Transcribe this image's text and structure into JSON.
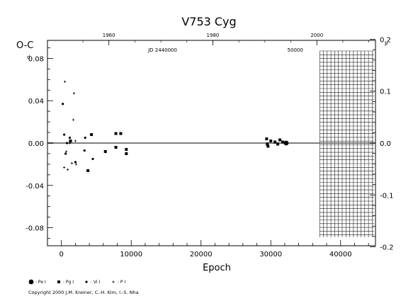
{
  "chart_data": {
    "type": "scatter",
    "title": "V753 Cyg",
    "xlabel": "Epoch",
    "ylabel_left": "O-C",
    "ylabel_left_unit": "d",
    "ylabel_right_unit": "P",
    "xlim": [
      -2000,
      45000
    ],
    "ylim": [
      -0.097,
      0.097
    ],
    "x_ticks": [
      0,
      10000,
      20000,
      30000,
      40000
    ],
    "x_tick_labels": [
      "0",
      "10000",
      "20000",
      "30000",
      "40000"
    ],
    "y_ticks": [
      -0.08,
      -0.04,
      0.0,
      0.04,
      0.08
    ],
    "y_tick_labels": [
      "-0.08",
      "-0.04",
      "0.00",
      "0.04",
      "0.08"
    ],
    "top_axis_ticks": [
      {
        "epoch": 6800,
        "label": "1960"
      },
      {
        "epoch": 21700,
        "label": "1980"
      },
      {
        "epoch": 36600,
        "label": "2000"
      }
    ],
    "top_axis_annotations": [
      {
        "epoch": 14500,
        "label": "JD 2440000"
      },
      {
        "epoch": 33500,
        "label": "50000"
      }
    ],
    "right_axis_ticks": [
      0.2,
      0.1,
      0.0,
      -0.1,
      -0.2
    ],
    "right_axis_tick_labels": [
      "0.2",
      "0.1",
      "0.0",
      "-0.1",
      "-0.2"
    ],
    "right_per_left": 1.36,
    "future_hatch_from": 37000,
    "series": [
      {
        "name": ": Pe I",
        "marker": "big-dot",
        "points": [
          [
            32200,
            0.0
          ]
        ]
      },
      {
        "name": ": Pg I",
        "marker": "square",
        "points": [
          [
            1300,
            0.002
          ],
          [
            3800,
            -0.026
          ],
          [
            4300,
            0.008
          ],
          [
            6300,
            -0.008
          ],
          [
            7800,
            0.009
          ],
          [
            7800,
            -0.004
          ],
          [
            8500,
            0.009
          ],
          [
            9300,
            -0.006
          ],
          [
            9300,
            -0.01
          ],
          [
            29400,
            0.004
          ],
          [
            29500,
            -0.001
          ],
          [
            29600,
            -0.003
          ],
          [
            30000,
            0.002
          ],
          [
            30600,
            0.001
          ],
          [
            31000,
            -0.001
          ],
          [
            31300,
            0.003
          ],
          [
            31700,
            0.001
          ]
        ]
      },
      {
        "name": ": Vi I",
        "marker": "dot",
        "points": [
          [
            200,
            0.037
          ],
          [
            400,
            0.008
          ],
          [
            600,
            -0.01
          ],
          [
            800,
            0.0
          ],
          [
            1200,
            0.005
          ],
          [
            2000,
            -0.018
          ],
          [
            3300,
            -0.007
          ],
          [
            3400,
            0.005
          ],
          [
            4500,
            -0.015
          ]
        ]
      },
      {
        "name": ": P I",
        "marker": "plus",
        "points": [
          [
            400,
            -0.023
          ],
          [
            500,
            0.058
          ],
          [
            700,
            -0.008
          ],
          [
            900,
            -0.025
          ],
          [
            1200,
            0.0
          ],
          [
            1500,
            -0.019
          ],
          [
            1700,
            0.022
          ],
          [
            1800,
            0.047
          ],
          [
            2000,
            0.002
          ],
          [
            2100,
            -0.02
          ]
        ]
      }
    ],
    "legend_position": "bottom-left"
  },
  "copyright": "Copyright 2000 J.M. Kreiner, C.-H. Kim, I.-S. Nha"
}
